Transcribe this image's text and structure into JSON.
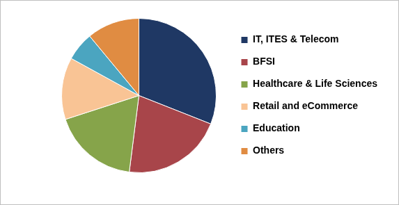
{
  "chart_data": {
    "type": "pie",
    "categories": [
      "IT, ITES & Telecom",
      "BFSI",
      "Healthcare & Life Sciences",
      "Retail and eCommerce",
      "Education",
      "Others"
    ],
    "values": [
      31,
      21,
      18,
      13,
      6,
      11
    ],
    "colors": [
      "#1f3864",
      "#a8454a",
      "#86a44a",
      "#f9c495",
      "#4ba5c0",
      "#e08c42"
    ],
    "legend": "right"
  }
}
